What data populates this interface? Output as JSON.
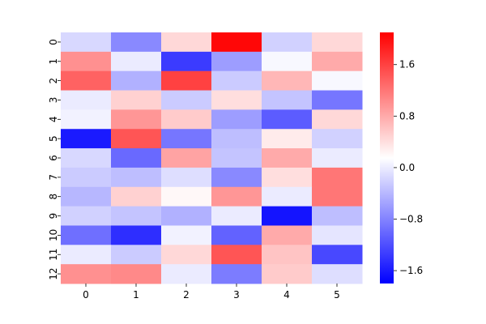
{
  "chart_data": {
    "type": "heatmap",
    "title": "",
    "xlabel": "",
    "ylabel": "",
    "x_categories": [
      "0",
      "1",
      "2",
      "3",
      "4",
      "5"
    ],
    "y_categories": [
      "0",
      "1",
      "2",
      "3",
      "4",
      "5",
      "6",
      "7",
      "8",
      "9",
      "10",
      "11",
      "12"
    ],
    "values": [
      [
        -0.15,
        -0.75,
        0.45,
        2.05,
        -0.2,
        0.45
      ],
      [
        1.0,
        0.0,
        -1.35,
        -0.6,
        0.1,
        0.8
      ],
      [
        1.35,
        -0.45,
        1.6,
        -0.25,
        0.7,
        0.1
      ],
      [
        0.0,
        0.5,
        -0.25,
        0.4,
        -0.3,
        -0.9
      ],
      [
        0.05,
        0.95,
        0.55,
        -0.6,
        -1.1,
        0.45
      ],
      [
        -1.6,
        1.45,
        -0.9,
        -0.35,
        0.3,
        -0.2
      ],
      [
        -0.15,
        -1.0,
        0.85,
        -0.3,
        0.8,
        0.0
      ],
      [
        -0.25,
        -0.35,
        -0.1,
        -0.75,
        0.4,
        1.2
      ],
      [
        -0.4,
        0.5,
        0.2,
        0.95,
        0.0,
        1.2
      ],
      [
        -0.2,
        -0.3,
        -0.45,
        0.0,
        -1.65,
        -0.35
      ],
      [
        -0.95,
        -1.45,
        0.05,
        -1.05,
        0.8,
        -0.05
      ],
      [
        0.0,
        -0.25,
        0.45,
        1.45,
        0.6,
        -1.25
      ],
      [
        1.0,
        1.05,
        0.0,
        -0.85,
        0.55,
        -0.1
      ]
    ],
    "colormap": "bwr",
    "vmin": -1.8,
    "vmax": 2.1,
    "colorbar_ticks": [
      "1.6",
      "0.8",
      "0.0",
      "−0.8",
      "−1.6"
    ],
    "grid": false
  }
}
